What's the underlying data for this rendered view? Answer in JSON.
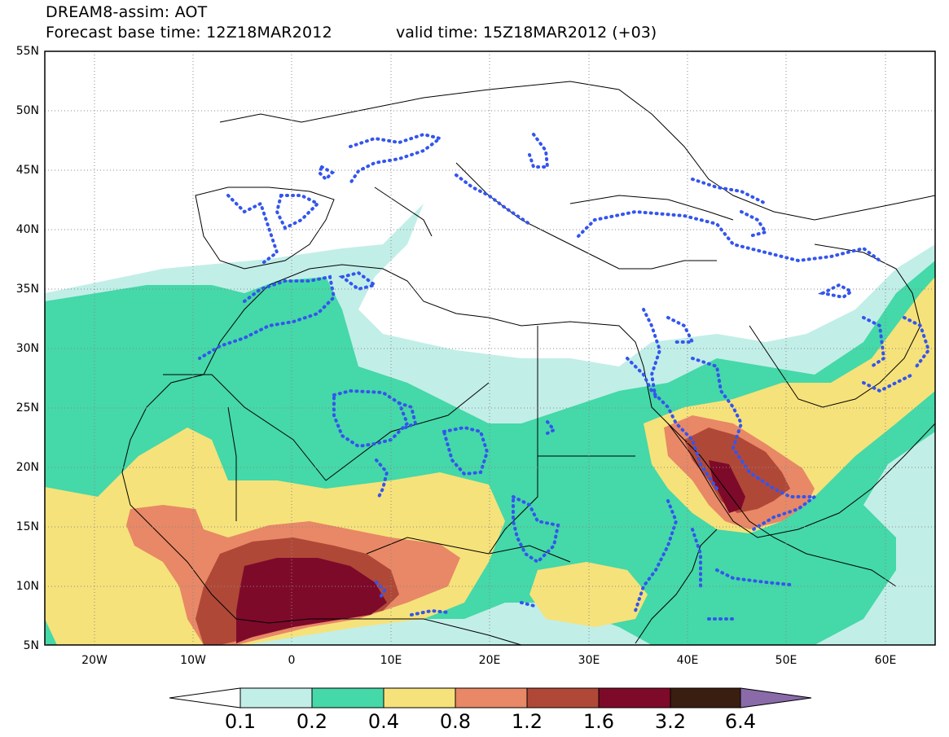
{
  "title": {
    "line1": "DREAM8-assim: AOT",
    "base_time": "Forecast base time: 12Z18MAR2012",
    "valid_time": "valid time: 15Z18MAR2012 (+03)"
  },
  "map": {
    "lon_range": [
      -25,
      65
    ],
    "lat_range": [
      5,
      55
    ],
    "lat_labels": [
      "55N",
      "50N",
      "45N",
      "40N",
      "35N",
      "30N",
      "25N",
      "20N",
      "15N",
      "10N",
      "5N"
    ],
    "lon_labels": [
      "20W",
      "10W",
      "0",
      "10E",
      "20E",
      "30E",
      "40E",
      "50E",
      "60E"
    ],
    "grid": "dotted",
    "observation_contour_color": "#3355ee"
  },
  "colorbar": {
    "labels": [
      "0.1",
      "0.2",
      "0.4",
      "0.8",
      "1.2",
      "1.6",
      "3.2",
      "6.4"
    ],
    "colors": [
      "#ffffff",
      "#c2eee8",
      "#45d8a8",
      "#f6e27a",
      "#e88866",
      "#b04838",
      "#7e0a2a",
      "#3a1e10",
      "#8a6aa8"
    ]
  }
}
